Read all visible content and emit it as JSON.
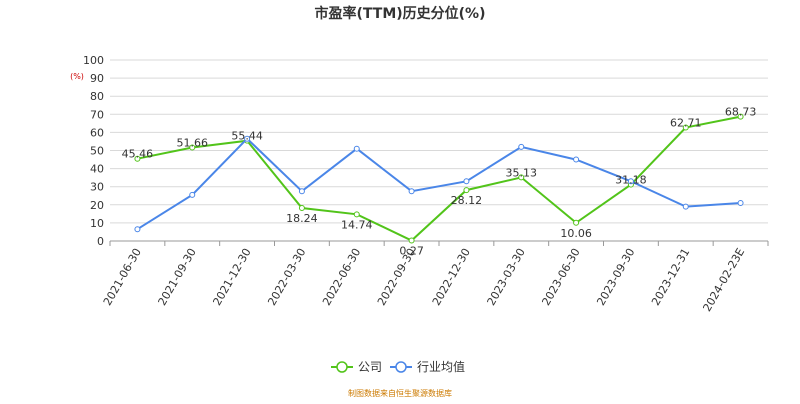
{
  "chart_data": {
    "type": "line",
    "title": "市盈率(TTM)历史分位(%)",
    "ylabel": "(%)",
    "ylim": [
      0,
      100
    ],
    "yticks": [
      0,
      10,
      20,
      30,
      40,
      50,
      60,
      70,
      80,
      90,
      100
    ],
    "grid": true,
    "legend_position": "bottom",
    "categories": [
      "2021-06-30",
      "2021-09-30",
      "2021-12-30",
      "2022-03-30",
      "2022-06-30",
      "2022-09-30",
      "2022-12-30",
      "2023-03-30",
      "2023-06-30",
      "2023-09-30",
      "2023-12-31",
      "2024-02-23E"
    ],
    "series": [
      {
        "name": "公司",
        "color": "#52c41a",
        "values": [
          45.46,
          51.66,
          55.44,
          18.24,
          14.74,
          0.27,
          28.12,
          35.13,
          10.06,
          31.18,
          62.71,
          68.73
        ],
        "labels": [
          "45.46",
          "51.66",
          "55.44",
          "18.24",
          "14.74",
          "0.27",
          "28.12",
          "35.13",
          "10.06",
          "31.18",
          "62.71",
          "68.73"
        ]
      },
      {
        "name": "行业均值",
        "color": "#4a86e8",
        "values": [
          6.5,
          25.5,
          56.5,
          27.5,
          51.0,
          27.5,
          33.0,
          52.0,
          45.0,
          33.0,
          19.0,
          21.0
        ]
      }
    ]
  },
  "footer": {
    "source": "制图数据来自恒生聚源数据库"
  }
}
